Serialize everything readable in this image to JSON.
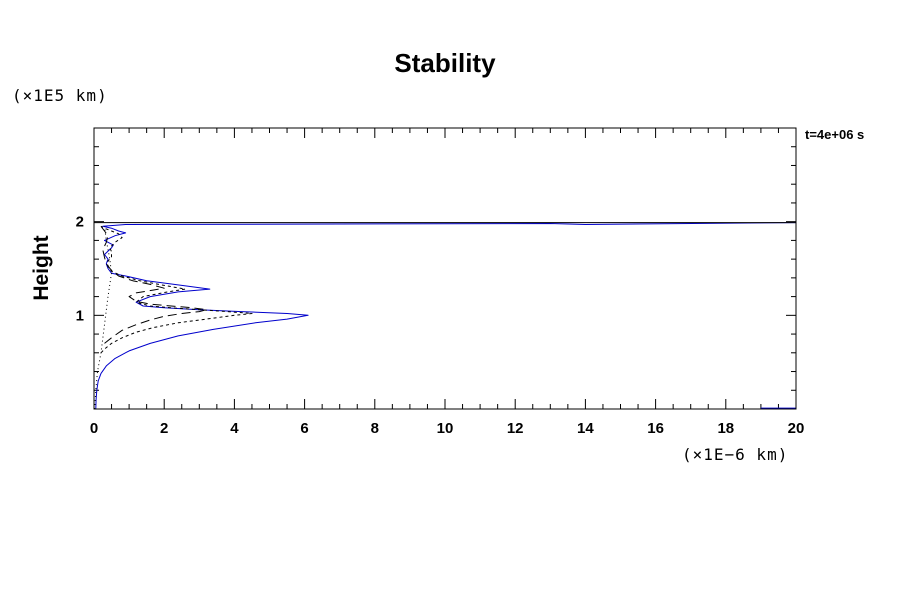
{
  "chart_data": {
    "type": "line",
    "title": "Stability",
    "ylabel": "Height",
    "xlabel": "",
    "x_unit_label": "(×1E−6 km)",
    "y_unit_label": "(×1E5 km)",
    "time_label": "t=4e+06 s",
    "xlim": [
      0,
      20
    ],
    "ylim": [
      0,
      3
    ],
    "x_ticks": [
      0,
      2,
      4,
      6,
      8,
      10,
      12,
      14,
      16,
      18,
      20
    ],
    "y_ticks": [
      1,
      2
    ],
    "grid": false,
    "colors": {
      "blue": "#0000cc",
      "black": "#000000"
    },
    "series": [
      {
        "style": "solid-blue",
        "x": [
          0.05,
          0.06,
          0.08,
          0.12,
          0.2,
          0.35,
          0.6,
          1.0,
          1.6,
          2.4,
          3.4,
          4.6,
          5.5,
          6.1,
          5.5,
          4.2,
          3.0,
          2.0,
          1.4,
          1.2,
          1.6,
          2.4,
          3.3,
          2.5,
          1.5,
          0.9,
          0.5,
          0.4,
          0.35,
          0.4,
          0.3,
          0.5,
          0.55,
          0.3,
          0.6,
          0.9,
          0.7,
          0.5,
          0.25,
          0.9,
          13.0,
          14.0,
          20.0
        ],
        "y": [
          0.0,
          0.1,
          0.2,
          0.3,
          0.38,
          0.46,
          0.54,
          0.62,
          0.7,
          0.78,
          0.85,
          0.92,
          0.96,
          1.0,
          1.02,
          1.04,
          1.06,
          1.08,
          1.1,
          1.14,
          1.2,
          1.25,
          1.28,
          1.32,
          1.37,
          1.42,
          1.45,
          1.5,
          1.55,
          1.6,
          1.65,
          1.72,
          1.75,
          1.8,
          1.85,
          1.88,
          1.9,
          1.93,
          1.95,
          1.97,
          1.98,
          1.97,
          1.99
        ]
      },
      {
        "style": "short-dash-black",
        "x": [
          0.2,
          0.3,
          0.5,
          0.8,
          1.2,
          1.7,
          2.4,
          3.2,
          4.0,
          4.5,
          3.8,
          3.0,
          2.2,
          1.6,
          1.2,
          1.4,
          2.1,
          2.6,
          2.0,
          1.3,
          0.8,
          0.5,
          0.4,
          0.4,
          0.5,
          0.5,
          0.45,
          0.6,
          0.8,
          0.7,
          0.5,
          0.3,
          0.2
        ],
        "y": [
          0.6,
          0.64,
          0.7,
          0.76,
          0.82,
          0.87,
          0.92,
          0.96,
          1.0,
          1.02,
          1.04,
          1.06,
          1.08,
          1.1,
          1.14,
          1.2,
          1.25,
          1.28,
          1.32,
          1.37,
          1.42,
          1.47,
          1.52,
          1.58,
          1.62,
          1.68,
          1.72,
          1.78,
          1.83,
          1.87,
          1.9,
          1.93,
          1.95
        ]
      },
      {
        "style": "long-dash-black",
        "x": [
          0.3,
          0.5,
          0.8,
          1.2,
          1.6,
          2.0,
          2.5,
          3.0,
          3.2,
          2.8,
          2.2,
          1.6,
          1.2,
          1.0,
          1.2,
          1.7,
          2.0,
          1.6,
          1.1,
          0.7,
          0.5,
          0.35,
          0.3,
          0.25,
          0.35,
          0.4,
          0.3,
          0.2
        ],
        "y": [
          0.7,
          0.76,
          0.84,
          0.9,
          0.95,
          0.99,
          1.02,
          1.04,
          1.06,
          1.08,
          1.1,
          1.12,
          1.15,
          1.2,
          1.24,
          1.27,
          1.29,
          1.33,
          1.37,
          1.42,
          1.48,
          1.55,
          1.62,
          1.7,
          1.78,
          1.85,
          1.9,
          1.95
        ]
      },
      {
        "style": "dotted-black",
        "x": [
          0.02,
          0.05,
          0.1,
          0.2,
          0.3,
          0.4,
          0.5,
          0.45,
          0.35,
          0.3
        ],
        "y": [
          0.0,
          0.2,
          0.4,
          0.6,
          0.9,
          1.2,
          1.45,
          1.6,
          1.8,
          1.95
        ]
      },
      {
        "style": "solid-black",
        "x": [
          0.0,
          20.0
        ],
        "y": [
          1.99,
          1.99
        ]
      },
      {
        "style": "solid-blue",
        "x": [
          19.0,
          20.0
        ],
        "y": [
          0.01,
          0.01
        ]
      }
    ]
  }
}
